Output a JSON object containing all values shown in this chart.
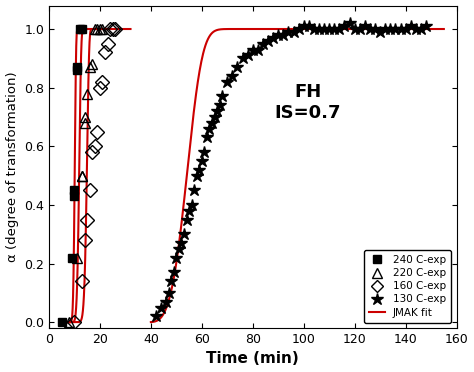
{
  "xlabel": "Time (min)",
  "ylabel": "α (degree of transformation)",
  "annotation_line1": "FH",
  "annotation_line2": "IS=0.7",
  "xlim": [
    0,
    160
  ],
  "ylim": [
    -0.02,
    1.08
  ],
  "yticks": [
    0.0,
    0.2,
    0.4,
    0.6,
    0.8,
    1.0
  ],
  "xticks": [
    0,
    20,
    40,
    60,
    80,
    100,
    120,
    140,
    160
  ],
  "background_color": "#ffffff",
  "curve_color": "#cc0000",
  "data_240": {
    "x": [
      5,
      9,
      10,
      10,
      11,
      11,
      12,
      13
    ],
    "y": [
      0.0,
      0.22,
      0.43,
      0.45,
      0.86,
      0.87,
      1.0,
      1.0
    ]
  },
  "fit_240": {
    "t_start": 7.0,
    "t_end": 15.0,
    "k": 0.012,
    "n": 5.5,
    "t0": 8.0
  },
  "data_220": {
    "x": [
      8,
      11,
      13,
      13,
      14,
      14,
      15,
      16,
      17,
      18,
      19,
      20,
      21
    ],
    "y": [
      0.0,
      0.22,
      0.5,
      0.5,
      0.68,
      0.7,
      0.78,
      0.87,
      0.88,
      1.0,
      1.0,
      1.0,
      1.0
    ]
  },
  "fit_220": {
    "t_start": 7.0,
    "t_end": 23.0,
    "k": 0.0005,
    "n": 6.0,
    "t0": 8.5
  },
  "data_160": {
    "x": [
      10,
      13,
      14,
      15,
      16,
      17,
      18,
      19,
      20,
      21,
      22,
      23,
      24,
      25,
      26
    ],
    "y": [
      0.0,
      0.14,
      0.28,
      0.35,
      0.45,
      0.58,
      0.6,
      0.65,
      0.8,
      0.82,
      0.92,
      0.95,
      1.0,
      1.0,
      1.0
    ]
  },
  "fit_160": {
    "t_start": 7.0,
    "t_end": 32.0,
    "k": 5e-06,
    "n": 7.5,
    "t0": 10.0
  },
  "data_130": {
    "x": [
      42,
      44,
      46,
      47,
      48,
      49,
      50,
      51,
      52,
      53,
      54,
      55,
      56,
      57,
      58,
      59,
      60,
      61,
      62,
      63,
      64,
      65,
      66,
      67,
      68,
      70,
      72,
      74,
      76,
      78,
      80,
      82,
      84,
      86,
      88,
      90,
      92,
      94,
      96,
      98,
      100,
      102,
      104,
      106,
      108,
      110,
      112,
      114,
      116,
      118,
      120,
      122,
      124,
      126,
      128,
      130,
      132,
      134,
      136,
      138,
      140,
      142,
      144,
      146,
      148
    ],
    "y": [
      0.02,
      0.05,
      0.07,
      0.1,
      0.14,
      0.17,
      0.22,
      0.25,
      0.27,
      0.3,
      0.35,
      0.38,
      0.4,
      0.45,
      0.5,
      0.52,
      0.55,
      0.58,
      0.63,
      0.66,
      0.68,
      0.7,
      0.72,
      0.74,
      0.77,
      0.82,
      0.84,
      0.87,
      0.9,
      0.91,
      0.93,
      0.93,
      0.95,
      0.96,
      0.97,
      0.98,
      0.98,
      0.99,
      0.99,
      1.0,
      1.01,
      1.01,
      1.0,
      1.0,
      1.0,
      1.0,
      1.0,
      1.0,
      1.01,
      1.02,
      1.0,
      1.0,
      1.01,
      1.0,
      1.0,
      0.99,
      1.0,
      1.0,
      1.0,
      1.0,
      1.0,
      1.01,
      1.0,
      1.0,
      1.01
    ]
  },
  "fit_130": {
    "t_start": 40.0,
    "t_end": 155.0,
    "k": 1.8e-05,
    "n": 3.8,
    "t0": 38.0
  }
}
